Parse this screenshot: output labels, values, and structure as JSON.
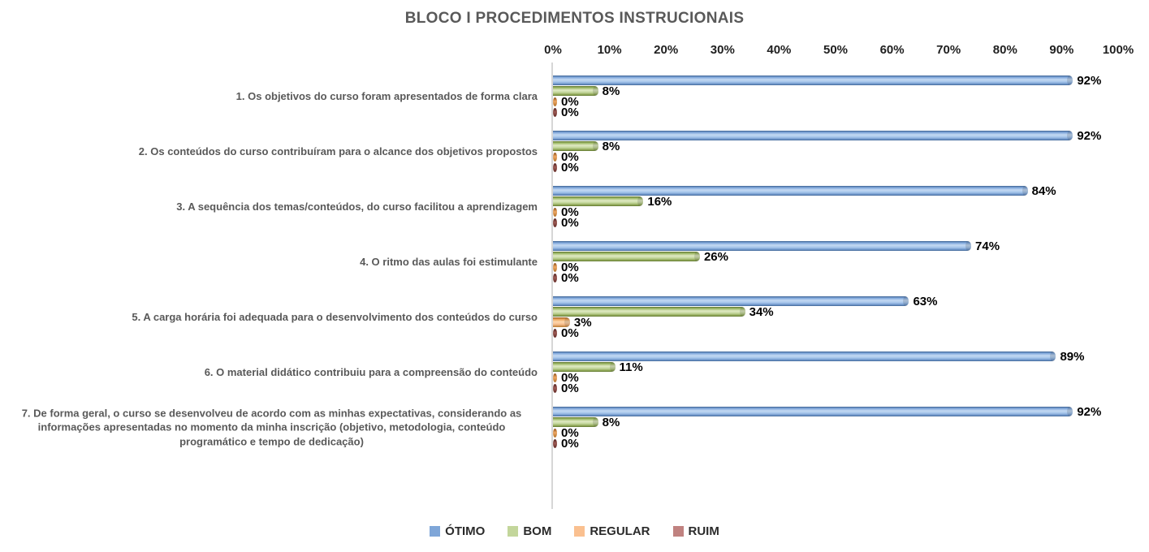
{
  "title": "BLOCO I PROCEDIMENTOS INSTRUCIONAIS",
  "chart_data": {
    "type": "bar",
    "orientation": "horizontal",
    "title": "BLOCO I PROCEDIMENTOS INSTRUCIONAIS",
    "categories": [
      "1. Os objetivos do curso foram apresentados de forma clara",
      "2. Os conteúdos do curso contribuíram para o alcance dos objetivos propostos",
      "3. A sequência dos temas/conteúdos, do curso facilitou a aprendizagem",
      "4. O ritmo das aulas foi estimulante",
      "5. A carga horária foi adequada para o desenvolvimento dos conteúdos do curso",
      "6. O material didático contribuiu para a compreensão do conteúdo",
      "7. De forma geral, o curso se desenvolveu de acordo com as minhas expectativas, considerando as informações apresentadas no momento da minha inscrição (objetivo, metodologia, conteúdo programático e tempo de dedicação)"
    ],
    "series": [
      {
        "name": "ÓTIMO",
        "color": "#7FA6D8",
        "values": [
          92,
          92,
          84,
          74,
          63,
          89,
          92
        ]
      },
      {
        "name": "BOM",
        "color": "#C3D69B",
        "values": [
          8,
          8,
          16,
          26,
          34,
          11,
          8
        ]
      },
      {
        "name": "REGULAR",
        "color": "#FAC090",
        "values": [
          0,
          0,
          0,
          0,
          3,
          0,
          0
        ]
      },
      {
        "name": "RUIM",
        "color": "#C08280",
        "values": [
          0,
          0,
          0,
          0,
          0,
          0,
          0
        ]
      }
    ],
    "x_ticks": [
      "0%",
      "10%",
      "20%",
      "30%",
      "40%",
      "50%",
      "60%",
      "70%",
      "80%",
      "90%",
      "100%"
    ],
    "xlim": [
      0,
      100
    ],
    "value_suffix": "%",
    "value_labels_shown": true,
    "grid": false,
    "legend_position": "bottom"
  }
}
